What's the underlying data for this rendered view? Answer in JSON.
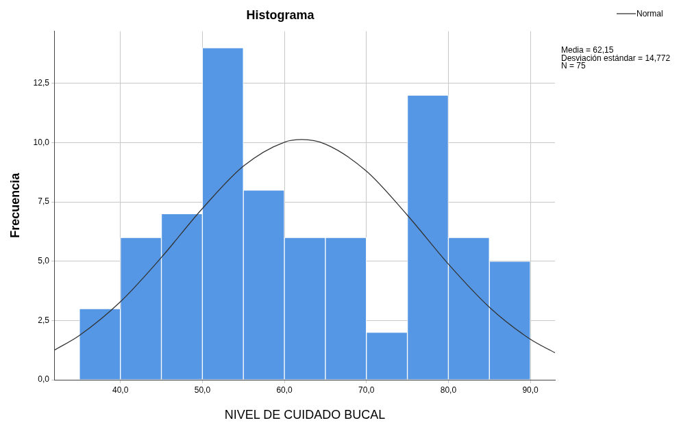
{
  "chart_data": {
    "type": "histogram",
    "title": "Histograma",
    "xlabel": "NIVEL DE CUIDADO BUCAL",
    "ylabel": "Frecuencia",
    "bins": [
      35,
      40,
      45,
      50,
      55,
      60,
      65,
      70,
      75,
      80,
      85,
      90
    ],
    "values": [
      3,
      6,
      7,
      14,
      8,
      6,
      6,
      2,
      12,
      6,
      5
    ],
    "color": "#5597e4",
    "series": [
      {
        "name": "Normal",
        "type": "line",
        "color": "#333333",
        "x": [
          32,
          35,
          40,
          45,
          50,
          55,
          60,
          62.15,
          65,
          70,
          75,
          80,
          85,
          90,
          93
        ],
        "values": [
          1.26,
          1.87,
          3.29,
          5.16,
          7.22,
          9.01,
          10.02,
          10.13,
          9.94,
          8.8,
          6.94,
          4.88,
          3.06,
          1.71,
          1.14
        ]
      }
    ],
    "xlim": [
      32,
      93
    ],
    "xticks": [
      {
        "value": 40,
        "label": "40,0"
      },
      {
        "value": 50,
        "label": "50,0"
      },
      {
        "value": 60,
        "label": "60,0"
      },
      {
        "value": 70,
        "label": "70,0"
      },
      {
        "value": 80,
        "label": "80,0"
      },
      {
        "value": 90,
        "label": "90,0"
      }
    ],
    "ylim": [
      0,
      14.7
    ],
    "yticks": [
      {
        "value": 0,
        "label": "0,0"
      },
      {
        "value": 2.5,
        "label": "2,5"
      },
      {
        "value": 5,
        "label": "5,0"
      },
      {
        "value": 7.5,
        "label": "7,5"
      },
      {
        "value": 10,
        "label": "10,0"
      },
      {
        "value": 12.5,
        "label": "12,5"
      }
    ],
    "grid": true,
    "legend": "top right",
    "marker": "none",
    "line_style": "solid",
    "annotations": [
      "Media = 62,15",
      "Desviación estándar = 14,772",
      "N = 75"
    ]
  }
}
